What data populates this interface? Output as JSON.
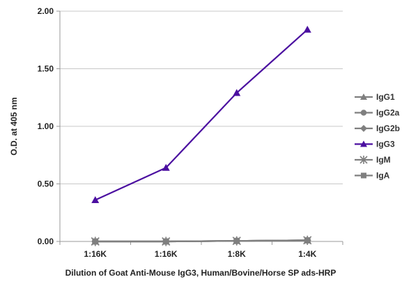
{
  "chart_data": {
    "type": "line",
    "categories": [
      "1:16K",
      "1:16K",
      "1:8K",
      "1:4K"
    ],
    "series": [
      {
        "name": "IgG1",
        "values": [
          0.0,
          0.0,
          0.005,
          0.01
        ],
        "color": "#7f7f7f",
        "marker": "triangle"
      },
      {
        "name": "IgG2a",
        "values": [
          0.0,
          0.0,
          0.005,
          0.01
        ],
        "color": "#7f7f7f",
        "marker": "circle"
      },
      {
        "name": "IgG2b",
        "values": [
          0.0,
          0.0,
          0.005,
          0.01
        ],
        "color": "#7f7f7f",
        "marker": "diamond"
      },
      {
        "name": "IgG3",
        "values": [
          0.36,
          0.64,
          1.29,
          1.84
        ],
        "color": "#4b0fa0",
        "marker": "triangle"
      },
      {
        "name": "IgM",
        "values": [
          0.0,
          0.0,
          0.005,
          0.01
        ],
        "color": "#7f7f7f",
        "marker": "asterisk"
      },
      {
        "name": "IgA",
        "values": [
          0.0,
          0.0,
          0.005,
          0.01
        ],
        "color": "#7f7f7f",
        "marker": "square"
      }
    ],
    "ylim": [
      0,
      2
    ],
    "yticks": [
      "0.00",
      "0.50",
      "1.00",
      "1.50",
      "2.00"
    ],
    "ylabel": "O.D. at 405 nm",
    "xlabel": "Dilution of Goat Anti-Mouse IgG3, Human/Bovine/Horse SP ads-HRP",
    "grid": "horizontal",
    "legend_position": "right"
  }
}
